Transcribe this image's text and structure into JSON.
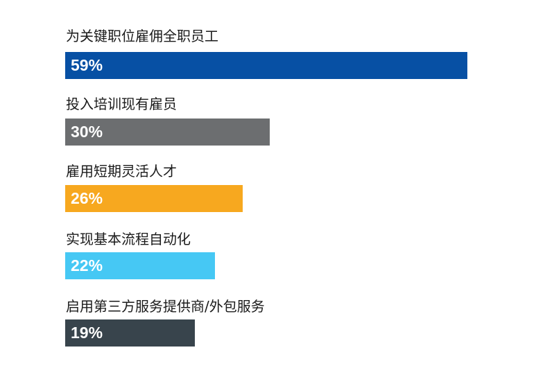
{
  "chart_data": {
    "type": "bar",
    "orientation": "horizontal",
    "categories": [
      "为关键职位雇佣全职员工",
      "投入培训现有雇员",
      "雇用短期灵活人才",
      "实现基本流程自动化",
      "启用第三方服务提供商/外包服务"
    ],
    "values": [
      59,
      30,
      26,
      22,
      19
    ],
    "value_labels": [
      "59%",
      "30%",
      "26%",
      "22%",
      "19%"
    ],
    "unit": "%",
    "colors": [
      "#0750a4",
      "#6c6e70",
      "#f7a81f",
      "#46c8f4",
      "#38444c"
    ],
    "xlim": [
      0,
      59
    ],
    "grid": false,
    "legend": "none"
  }
}
